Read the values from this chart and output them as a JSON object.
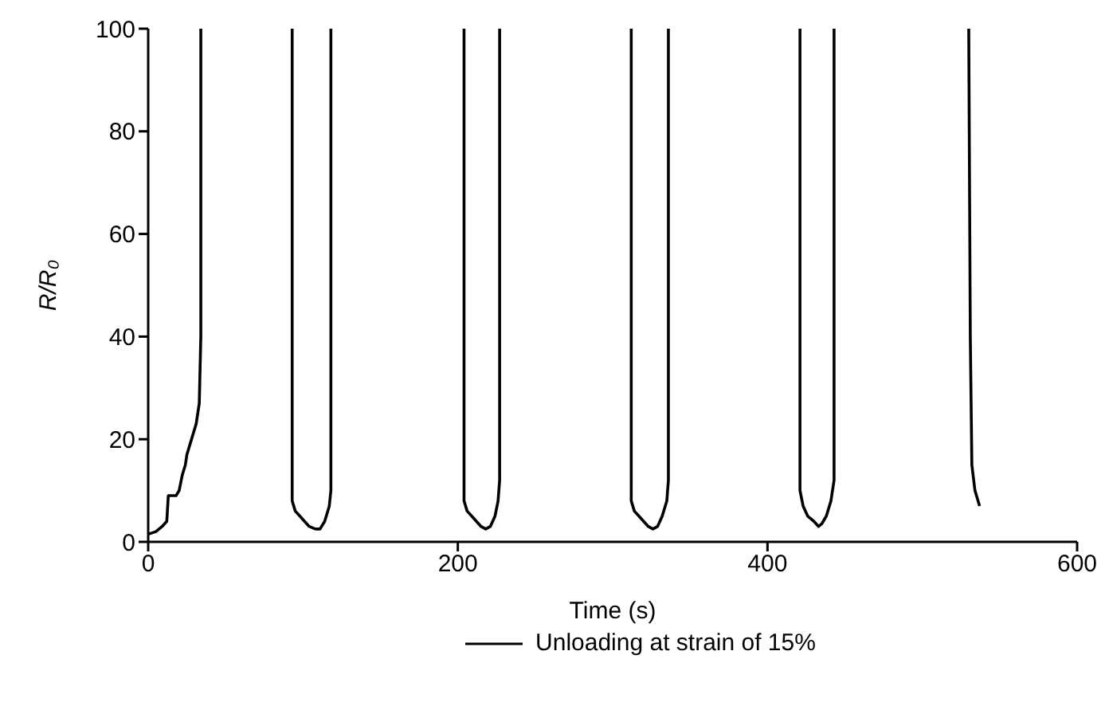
{
  "chart_data": {
    "type": "line",
    "xlabel": "Time (s)",
    "ylabel": "R/R₀",
    "x": [
      0,
      5,
      9,
      12,
      13,
      18,
      20,
      22,
      24,
      25,
      27,
      29,
      31,
      33,
      34,
      34,
      60,
      93,
      93,
      95,
      98,
      101,
      104,
      108,
      111,
      114,
      117,
      118,
      118,
      160,
      204,
      204,
      206,
      209,
      212,
      215,
      218,
      221,
      224,
      226,
      227,
      227,
      265,
      312,
      312,
      314,
      317,
      320,
      323,
      326,
      329,
      332,
      335,
      336,
      336,
      375,
      421,
      421,
      423,
      426,
      430,
      433,
      435,
      438,
      441,
      443,
      443,
      485,
      530,
      531,
      532,
      534,
      536,
      537
    ],
    "series": [
      {
        "name": "Unloading at strain of 15%",
        "color": "#000000",
        "values": [
          1.5,
          2,
          3,
          4,
          9,
          9,
          10,
          13,
          15,
          17,
          19,
          21,
          23,
          27,
          40,
          100,
          null,
          100,
          8,
          6,
          5,
          4,
          3,
          2.5,
          2.5,
          4,
          7,
          10,
          100,
          null,
          100,
          8,
          6,
          5,
          4,
          3,
          2.5,
          3,
          5,
          8,
          12,
          100,
          null,
          100,
          8,
          6,
          5,
          4,
          3,
          2.5,
          3,
          5,
          8,
          12,
          100,
          null,
          100,
          10,
          7,
          5,
          4,
          3,
          3.5,
          5,
          8,
          12,
          100,
          null,
          100,
          40,
          15,
          10,
          8,
          7
        ]
      }
    ],
    "xlim": [
      0,
      600
    ],
    "xticks": [
      0,
      200,
      400,
      600
    ],
    "ylim": [
      0,
      100
    ],
    "yticks": [
      0,
      20,
      40,
      60,
      80,
      100
    ],
    "grid": false,
    "legend": "bottom",
    "marker": "none",
    "line_style": "solid"
  }
}
